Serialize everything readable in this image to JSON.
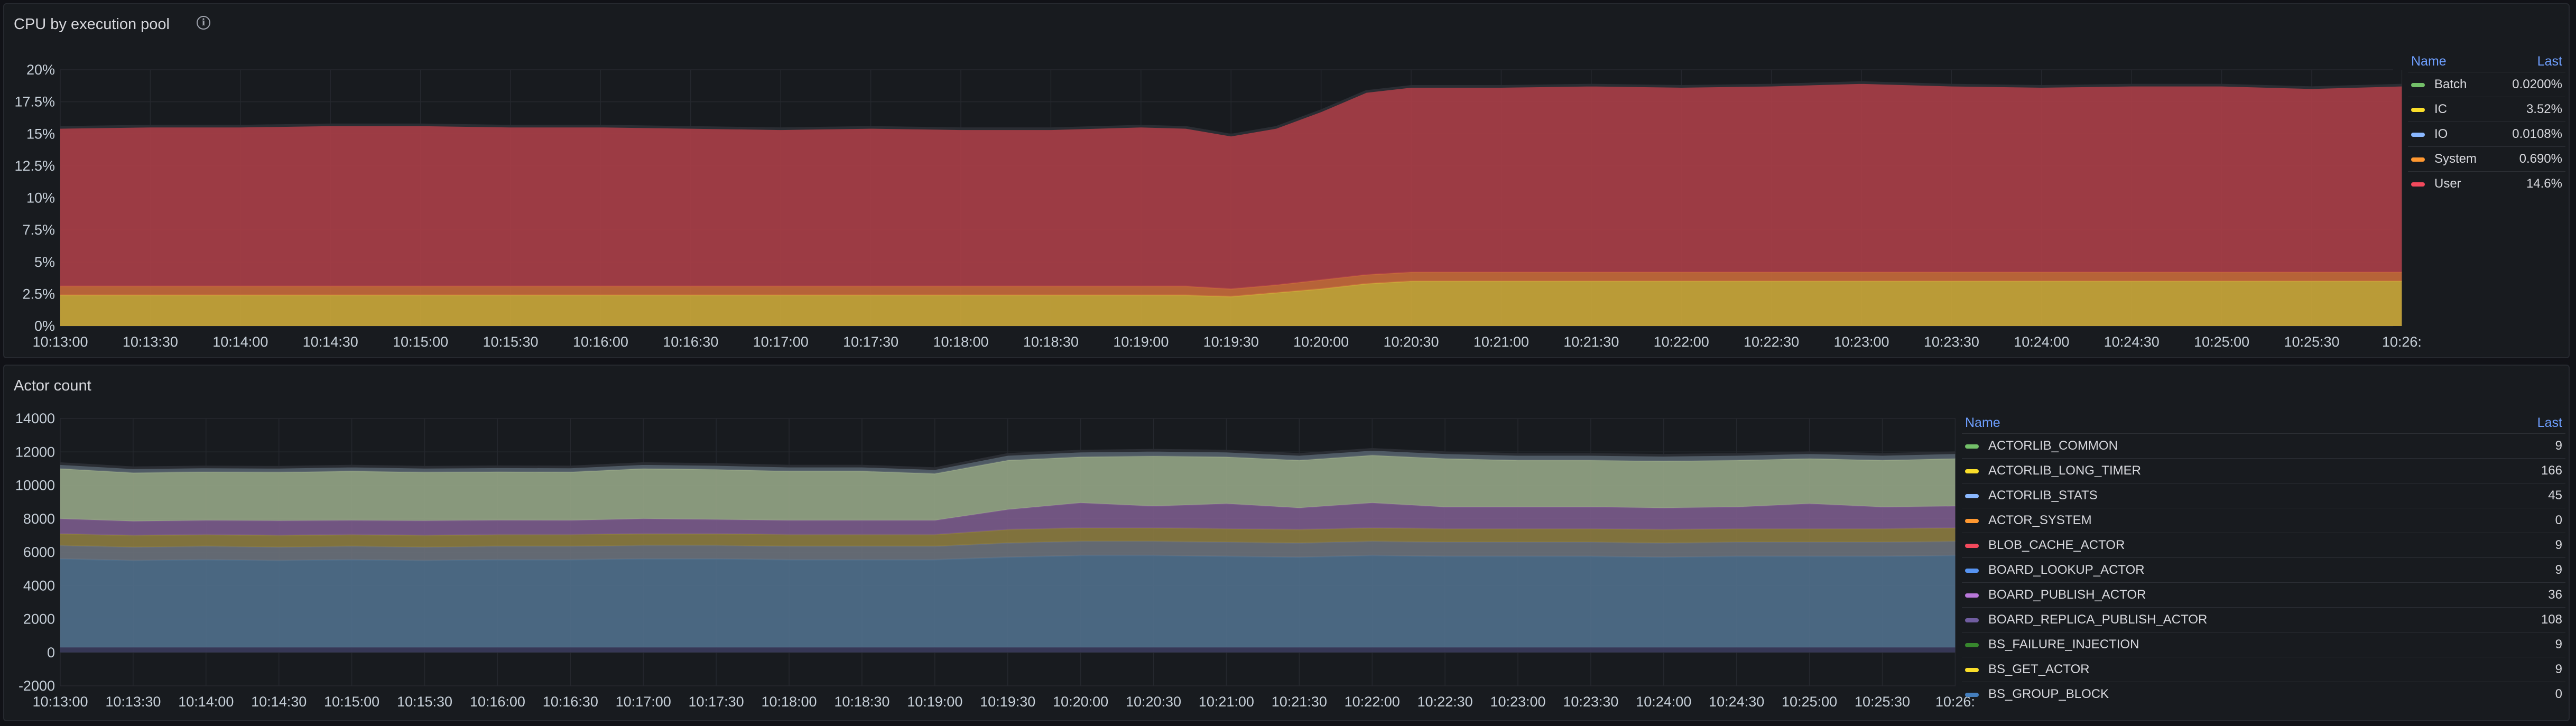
{
  "panels": [
    {
      "id": "cpu",
      "title": "CPU by execution pool",
      "legend": {
        "name_header": "Name",
        "last_header": "Last",
        "rows": [
          {
            "name": "Batch",
            "last": "0.0200%",
            "color": "#73bf69"
          },
          {
            "name": "IC",
            "last": "3.52%",
            "color": "#fade2a"
          },
          {
            "name": "IO",
            "last": "0.0108%",
            "color": "#8ab8ff"
          },
          {
            "name": "System",
            "last": "0.690%",
            "color": "#ff9830"
          },
          {
            "name": "User",
            "last": "14.6%",
            "color": "#f2495c"
          }
        ]
      }
    },
    {
      "id": "actor",
      "title": "Actor count",
      "legend": {
        "name_header": "Name",
        "last_header": "Last",
        "rows": [
          {
            "name": "ACTORLIB_COMMON",
            "last": "9",
            "color": "#73bf69"
          },
          {
            "name": "ACTORLIB_LONG_TIMER",
            "last": "166",
            "color": "#fade2a"
          },
          {
            "name": "ACTORLIB_STATS",
            "last": "45",
            "color": "#8ab8ff"
          },
          {
            "name": "ACTOR_SYSTEM",
            "last": "0",
            "color": "#ff9830"
          },
          {
            "name": "BLOB_CACHE_ACTOR",
            "last": "9",
            "color": "#f2495c"
          },
          {
            "name": "BOARD_LOOKUP_ACTOR",
            "last": "9",
            "color": "#5794f2"
          },
          {
            "name": "BOARD_PUBLISH_ACTOR",
            "last": "36",
            "color": "#b877d9"
          },
          {
            "name": "BOARD_REPLICA_PUBLISH_ACTOR",
            "last": "108",
            "color": "#705da0"
          },
          {
            "name": "BS_FAILURE_INJECTION",
            "last": "9",
            "color": "#37872d"
          },
          {
            "name": "BS_GET_ACTOR",
            "last": "9",
            "color": "#fade2a"
          },
          {
            "name": "BS_GROUP_BLOCK",
            "last": "0",
            "color": "#447ebc"
          }
        ]
      }
    }
  ],
  "chart_data": [
    {
      "type": "area",
      "stacked": true,
      "title": "CPU by execution pool",
      "ylim": [
        0,
        20
      ],
      "y_ticks": [
        "0%",
        "2.5%",
        "5%",
        "7.5%",
        "10%",
        "12.5%",
        "15%",
        "17.5%",
        "20%"
      ],
      "x_ticks": [
        "10:13:00",
        "10:13:30",
        "10:14:00",
        "10:14:30",
        "10:15:00",
        "10:15:30",
        "10:16:00",
        "10:16:30",
        "10:17:00",
        "10:17:30",
        "10:18:00",
        "10:18:30",
        "10:19:00",
        "10:19:30",
        "10:20:00",
        "10:20:30",
        "10:21:00",
        "10:21:30",
        "10:22:00",
        "10:22:30",
        "10:23:00",
        "10:23:30",
        "10:24:00",
        "10:24:30",
        "10:25:00",
        "10:25:30",
        "10:26:"
      ],
      "x": [
        "10:13:00",
        "10:13:30",
        "10:14:00",
        "10:14:30",
        "10:15:00",
        "10:15:30",
        "10:16:00",
        "10:16:30",
        "10:17:00",
        "10:17:30",
        "10:18:00",
        "10:18:30",
        "10:19:00",
        "10:19:15",
        "10:19:30",
        "10:19:45",
        "10:20:00",
        "10:20:15",
        "10:20:30",
        "10:21:00",
        "10:21:30",
        "10:22:00",
        "10:22:30",
        "10:23:00",
        "10:23:30",
        "10:24:00",
        "10:24:30",
        "10:25:00",
        "10:25:30",
        "10:26:00"
      ],
      "series": [
        {
          "name": "IC",
          "color": "#c9a63a",
          "values": [
            2.4,
            2.4,
            2.4,
            2.4,
            2.4,
            2.4,
            2.4,
            2.4,
            2.4,
            2.4,
            2.4,
            2.4,
            2.4,
            2.4,
            2.3,
            2.6,
            2.9,
            3.3,
            3.5,
            3.5,
            3.5,
            3.5,
            3.5,
            3.5,
            3.5,
            3.5,
            3.5,
            3.5,
            3.5,
            3.5
          ]
        },
        {
          "name": "System",
          "color": "#c4693b",
          "values": [
            0.7,
            0.7,
            0.7,
            0.7,
            0.7,
            0.7,
            0.7,
            0.7,
            0.7,
            0.7,
            0.7,
            0.7,
            0.7,
            0.7,
            0.6,
            0.6,
            0.7,
            0.7,
            0.7,
            0.7,
            0.7,
            0.7,
            0.7,
            0.7,
            0.7,
            0.7,
            0.7,
            0.7,
            0.7,
            0.7
          ]
        },
        {
          "name": "User",
          "color": "#a83e48",
          "values": [
            12.4,
            12.5,
            12.5,
            12.6,
            12.6,
            12.5,
            12.5,
            12.4,
            12.3,
            12.4,
            12.3,
            12.3,
            12.5,
            12.4,
            12.0,
            12.3,
            13.2,
            14.3,
            14.5,
            14.5,
            14.6,
            14.5,
            14.6,
            14.8,
            14.6,
            14.5,
            14.6,
            14.6,
            14.4,
            14.6
          ]
        }
      ]
    },
    {
      "type": "area",
      "stacked": true,
      "title": "Actor count",
      "ylim": [
        -2000,
        14000
      ],
      "y_ticks": [
        "-2000",
        "0",
        "2000",
        "4000",
        "6000",
        "8000",
        "10000",
        "12000",
        "14000"
      ],
      "x_ticks": [
        "10:13:00",
        "10:13:30",
        "10:14:00",
        "10:14:30",
        "10:15:00",
        "10:15:30",
        "10:16:00",
        "10:16:30",
        "10:17:00",
        "10:17:30",
        "10:18:00",
        "10:18:30",
        "10:19:00",
        "10:19:30",
        "10:20:00",
        "10:20:30",
        "10:21:00",
        "10:21:30",
        "10:22:00",
        "10:22:30",
        "10:23:00",
        "10:23:30",
        "10:24:00",
        "10:24:30",
        "10:25:00",
        "10:25:30",
        "10:26:"
      ],
      "x": [
        "10:13:00",
        "10:13:30",
        "10:14:00",
        "10:14:30",
        "10:15:00",
        "10:15:30",
        "10:16:00",
        "10:16:30",
        "10:17:00",
        "10:17:30",
        "10:18:00",
        "10:18:30",
        "10:19:00",
        "10:19:30",
        "10:20:00",
        "10:20:30",
        "10:21:00",
        "10:21:30",
        "10:22:00",
        "10:22:30",
        "10:23:00",
        "10:23:30",
        "10:24:00",
        "10:24:30",
        "10:25:00",
        "10:25:30",
        "10:26:00"
      ],
      "series": [
        {
          "color": "#3a3a5a",
          "values": [
            300,
            300,
            300,
            300,
            300,
            300,
            300,
            300,
            300,
            300,
            300,
            300,
            300,
            300,
            300,
            300,
            300,
            300,
            300,
            300,
            300,
            300,
            300,
            300,
            300,
            300,
            300
          ]
        },
        {
          "color": "#4f6e8a",
          "values": [
            5300,
            5200,
            5250,
            5200,
            5250,
            5200,
            5250,
            5250,
            5300,
            5300,
            5250,
            5250,
            5250,
            5400,
            5500,
            5500,
            5450,
            5400,
            5500,
            5450,
            5450,
            5450,
            5400,
            5450,
            5450,
            5450,
            5500
          ]
        },
        {
          "color": "#6a7079",
          "values": [
            800,
            800,
            800,
            800,
            800,
            800,
            800,
            800,
            800,
            800,
            800,
            800,
            800,
            850,
            850,
            850,
            850,
            850,
            850,
            850,
            850,
            850,
            850,
            850,
            850,
            850,
            850
          ]
        },
        {
          "color": "#8a7a40",
          "values": [
            700,
            700,
            700,
            700,
            700,
            700,
            700,
            700,
            700,
            700,
            700,
            700,
            700,
            800,
            800,
            800,
            800,
            800,
            800,
            800,
            800,
            800,
            800,
            800,
            800,
            800,
            800
          ]
        },
        {
          "color": "#7a5a8a",
          "values": [
            900,
            850,
            850,
            880,
            850,
            880,
            860,
            850,
            900,
            850,
            850,
            850,
            850,
            1200,
            1500,
            1300,
            1500,
            1300,
            1500,
            1300,
            1300,
            1300,
            1300,
            1300,
            1500,
            1300,
            1300
          ]
        },
        {
          "color": "#93a384",
          "values": [
            3000,
            2900,
            2900,
            2900,
            2950,
            2900,
            2900,
            2900,
            3000,
            3000,
            2950,
            2950,
            2800,
            2950,
            2750,
            3000,
            2800,
            2850,
            2850,
            2900,
            2800,
            2800,
            2800,
            2800,
            2700,
            2800,
            2850
          ]
        },
        {
          "color": "#55606a",
          "values": [
            300,
            300,
            300,
            300,
            300,
            300,
            300,
            300,
            300,
            300,
            300,
            300,
            300,
            350,
            350,
            350,
            350,
            350,
            350,
            350,
            350,
            350,
            350,
            350,
            350,
            350,
            350
          ]
        }
      ]
    }
  ]
}
